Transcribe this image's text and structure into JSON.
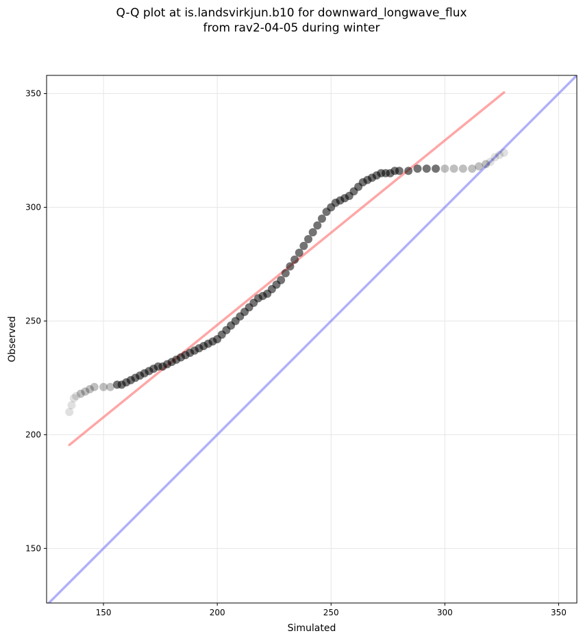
{
  "chart_data": {
    "type": "scatter",
    "title": "Q-Q plot at is.landsvirkjun.b10 for downward_longwave_flux",
    "subtitle": "from rav2-04-05 during winter",
    "xlabel": "Simulated",
    "ylabel": "Observed",
    "xlim": [
      125,
      358
    ],
    "ylim": [
      126,
      358
    ],
    "xticks": [
      150,
      200,
      250,
      300,
      350
    ],
    "yticks": [
      150,
      200,
      250,
      300,
      350
    ],
    "grid": true,
    "series": [
      {
        "kind": "quantile-points",
        "color": "#000000",
        "points": [
          [
            135,
            210
          ],
          [
            136,
            213
          ],
          [
            137,
            216
          ],
          [
            138,
            217
          ],
          [
            140,
            218
          ],
          [
            142,
            219
          ],
          [
            144,
            220
          ],
          [
            146,
            221
          ],
          [
            150,
            221
          ],
          [
            153,
            221
          ],
          [
            156,
            222
          ],
          [
            158,
            222
          ],
          [
            160,
            223
          ],
          [
            162,
            224
          ],
          [
            164,
            225
          ],
          [
            166,
            226
          ],
          [
            168,
            227
          ],
          [
            170,
            228
          ],
          [
            172,
            229
          ],
          [
            174,
            230
          ],
          [
            176,
            230
          ],
          [
            178,
            231
          ],
          [
            180,
            232
          ],
          [
            182,
            233
          ],
          [
            184,
            234
          ],
          [
            186,
            235
          ],
          [
            188,
            236
          ],
          [
            190,
            237
          ],
          [
            192,
            238
          ],
          [
            194,
            239
          ],
          [
            196,
            240
          ],
          [
            198,
            241
          ],
          [
            200,
            242
          ],
          [
            202,
            244
          ],
          [
            204,
            246
          ],
          [
            206,
            248
          ],
          [
            208,
            250
          ],
          [
            210,
            252
          ],
          [
            212,
            254
          ],
          [
            214,
            256
          ],
          [
            216,
            258
          ],
          [
            218,
            260
          ],
          [
            220,
            261
          ],
          [
            222,
            262
          ],
          [
            224,
            264
          ],
          [
            226,
            266
          ],
          [
            228,
            268
          ],
          [
            230,
            271
          ],
          [
            232,
            274
          ],
          [
            234,
            277
          ],
          [
            236,
            280
          ],
          [
            238,
            283
          ],
          [
            240,
            286
          ],
          [
            242,
            289
          ],
          [
            244,
            292
          ],
          [
            246,
            295
          ],
          [
            248,
            298
          ],
          [
            250,
            300
          ],
          [
            252,
            302
          ],
          [
            254,
            303
          ],
          [
            256,
            304
          ],
          [
            258,
            305
          ],
          [
            260,
            307
          ],
          [
            262,
            309
          ],
          [
            264,
            311
          ],
          [
            266,
            312
          ],
          [
            268,
            313
          ],
          [
            270,
            314
          ],
          [
            272,
            315
          ],
          [
            274,
            315
          ],
          [
            276,
            315
          ],
          [
            278,
            316
          ],
          [
            280,
            316
          ],
          [
            284,
            316
          ],
          [
            288,
            317
          ],
          [
            292,
            317
          ],
          [
            296,
            317
          ],
          [
            300,
            317
          ],
          [
            304,
            317
          ],
          [
            308,
            317
          ],
          [
            312,
            317
          ],
          [
            315,
            318
          ],
          [
            318,
            319
          ],
          [
            320,
            320
          ],
          [
            322,
            322
          ],
          [
            324,
            323
          ],
          [
            326,
            324
          ]
        ]
      },
      {
        "kind": "fit-line",
        "color": "#ff6b6b",
        "points": [
          [
            135,
            195.5
          ],
          [
            326,
            350.5
          ]
        ]
      },
      {
        "kind": "identity-line",
        "color": "#7b7bf5",
        "points": [
          [
            125,
            125
          ],
          [
            358,
            358
          ]
        ]
      }
    ]
  }
}
